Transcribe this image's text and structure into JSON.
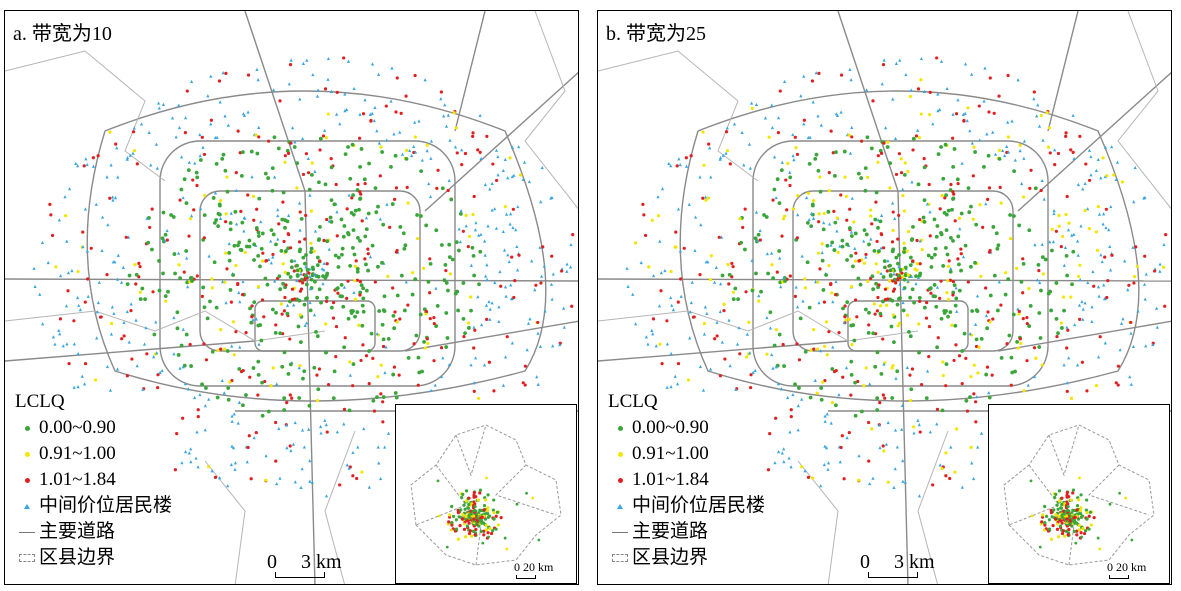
{
  "panels": [
    {
      "id": "a",
      "title": "a. 带宽为10"
    },
    {
      "id": "b",
      "title": "b. 带宽为25"
    }
  ],
  "legend": {
    "title": "LCLQ",
    "items": [
      {
        "label": "0.00~0.90",
        "color": "#3aa63a",
        "shape": "dot"
      },
      {
        "label": "0.91~1.00",
        "color": "#f2e600",
        "shape": "dot"
      },
      {
        "label": "1.01~1.84",
        "color": "#e02020",
        "shape": "dot"
      },
      {
        "label": "中间价位居民楼",
        "color": "#3aa6e0",
        "shape": "triangle"
      },
      {
        "label": "主要道路",
        "color": "#777777",
        "shape": "line"
      },
      {
        "label": "区县边界",
        "color": "#888888",
        "shape": "dashed-box"
      }
    ]
  },
  "scale": {
    "zero": "0",
    "value": "3 km"
  },
  "inset_scale": {
    "zero": "0",
    "value": "20 km"
  }
}
